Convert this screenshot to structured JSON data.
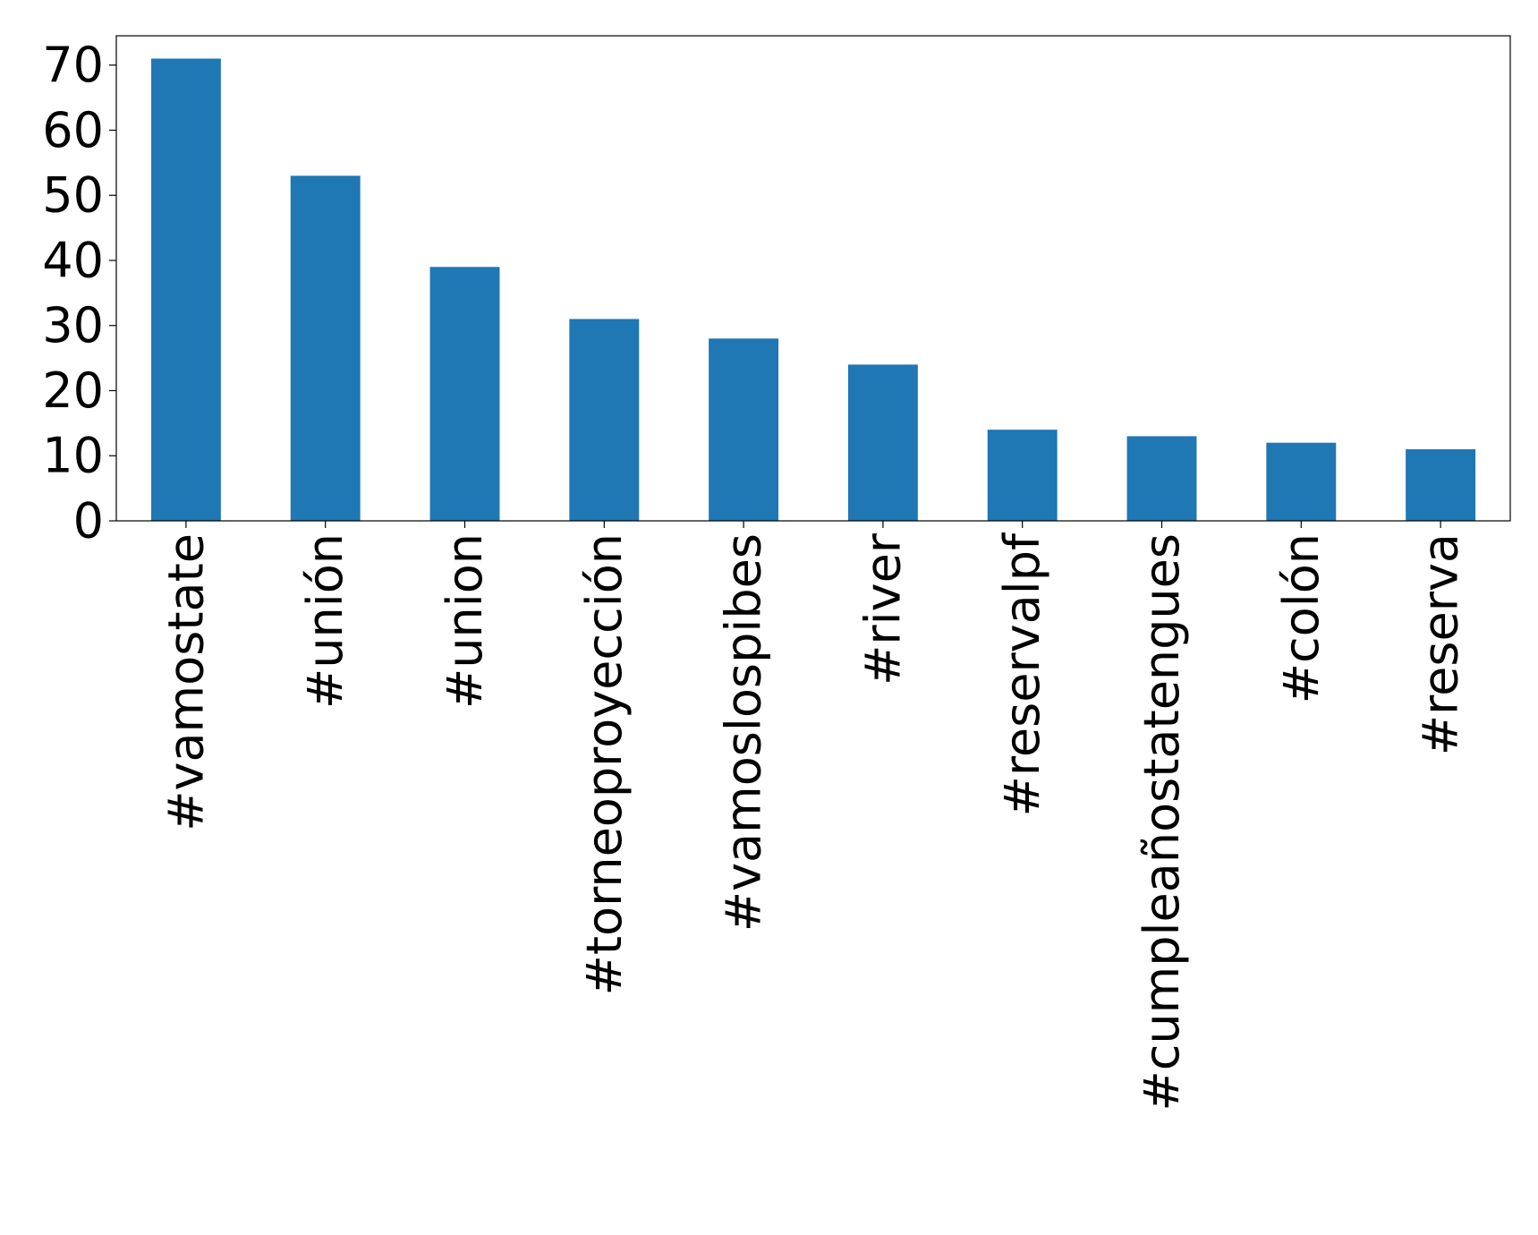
{
  "chart_data": {
    "type": "bar",
    "categories": [
      "#vamostate",
      "#unión",
      "#union",
      "#torneoproyección",
      "#vamoslospibes",
      "#river",
      "#reservalpf",
      "#cumpleañostatengues",
      "#colón",
      "#reserva"
    ],
    "values": [
      71,
      53,
      39,
      31,
      28,
      24,
      14,
      13,
      12,
      11
    ],
    "title": "",
    "xlabel": "",
    "ylabel": "",
    "ylim": [
      0,
      74.5
    ],
    "yticks": [
      "0",
      "10",
      "20",
      "30",
      "40",
      "50",
      "60",
      "70"
    ],
    "grid": false,
    "legend": "none",
    "bar_color": "#1f77b4"
  }
}
